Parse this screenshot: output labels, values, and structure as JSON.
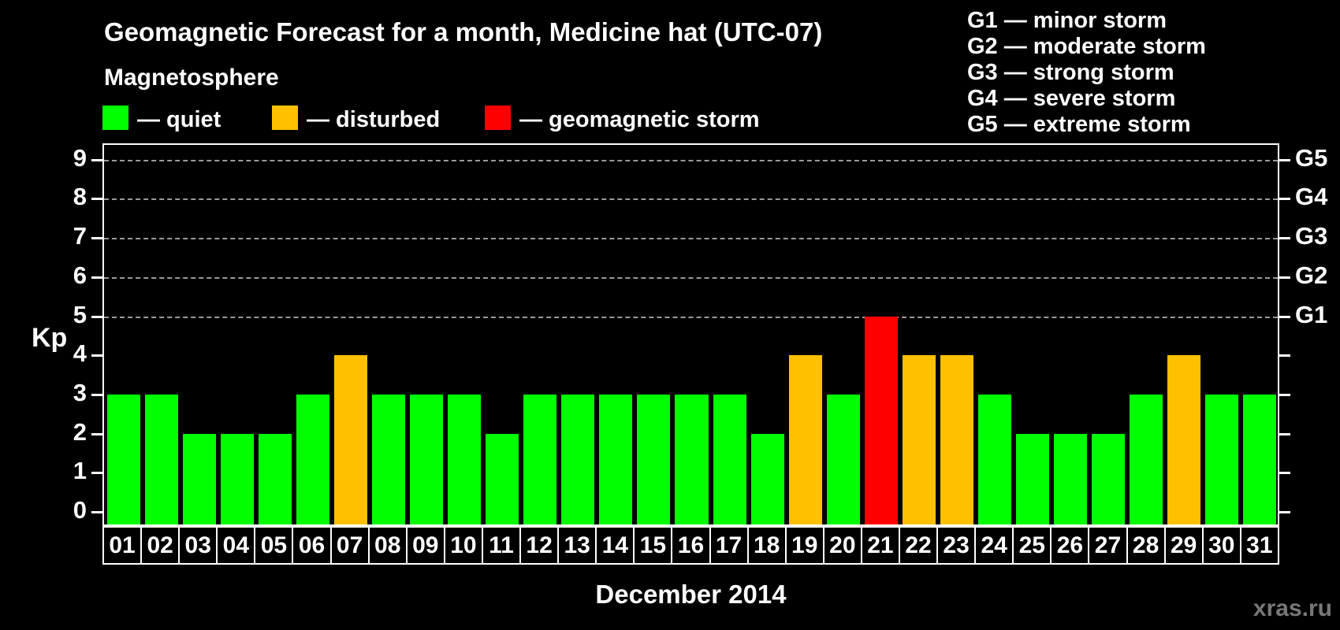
{
  "header": {
    "title": "Geomagnetic Forecast for a month, Medicine hat (UTC-07)",
    "subtitle": "Magnetosphere"
  },
  "legend": {
    "items": [
      {
        "key": "quiet",
        "label": "— quiet",
        "color": "#00ff00",
        "x": 130
      },
      {
        "key": "disturbed",
        "label": "— disturbed",
        "color": "#ffc000",
        "x": 345
      },
      {
        "key": "storm",
        "label": "— geomagnetic storm",
        "color": "#ff0000",
        "x": 615
      }
    ]
  },
  "g_legend": {
    "lines": [
      "G1 — minor storm",
      "G2 — moderate storm",
      "G3 — strong storm",
      "G4 — severe storm",
      "G5 — extreme storm"
    ]
  },
  "axes": {
    "y_label": "Kp",
    "left_ticks": [
      0,
      1,
      2,
      3,
      4,
      5,
      6,
      7,
      8,
      9
    ],
    "right_labels": [
      {
        "label": "G1",
        "kp": 5
      },
      {
        "label": "G2",
        "kp": 6
      },
      {
        "label": "G3",
        "kp": 7
      },
      {
        "label": "G4",
        "kp": 8
      },
      {
        "label": "G5",
        "kp": 9
      }
    ],
    "x_label": "December 2014"
  },
  "watermark": "xras.ru",
  "chart_data": {
    "type": "bar",
    "title": "Geomagnetic Forecast for a month, Medicine hat (UTC-07)",
    "xlabel": "December 2014",
    "ylabel": "Kp",
    "ylim": [
      0,
      9
    ],
    "grid": "horizontal dashed lines at Kp 5,6,7,8,9 (G1–G5)",
    "legend_position": "top",
    "categories": [
      "01",
      "02",
      "03",
      "04",
      "05",
      "06",
      "07",
      "08",
      "09",
      "10",
      "11",
      "12",
      "13",
      "14",
      "15",
      "16",
      "17",
      "18",
      "19",
      "20",
      "21",
      "22",
      "23",
      "24",
      "25",
      "26",
      "27",
      "28",
      "29",
      "30",
      "31"
    ],
    "values": [
      3,
      3,
      2,
      2,
      2,
      3,
      4,
      3,
      3,
      3,
      2,
      3,
      3,
      3,
      3,
      3,
      3,
      2,
      4,
      3,
      5,
      4,
      4,
      3,
      2,
      2,
      2,
      3,
      4,
      3,
      3
    ],
    "states": [
      "quiet",
      "quiet",
      "quiet",
      "quiet",
      "quiet",
      "quiet",
      "disturbed",
      "quiet",
      "quiet",
      "quiet",
      "quiet",
      "quiet",
      "quiet",
      "quiet",
      "quiet",
      "quiet",
      "quiet",
      "quiet",
      "disturbed",
      "quiet",
      "storm",
      "disturbed",
      "disturbed",
      "quiet",
      "quiet",
      "quiet",
      "quiet",
      "quiet",
      "disturbed",
      "quiet",
      "quiet"
    ],
    "state_colors": {
      "quiet": "#00ff00",
      "disturbed": "#ffc000",
      "storm": "#ff0000"
    }
  }
}
